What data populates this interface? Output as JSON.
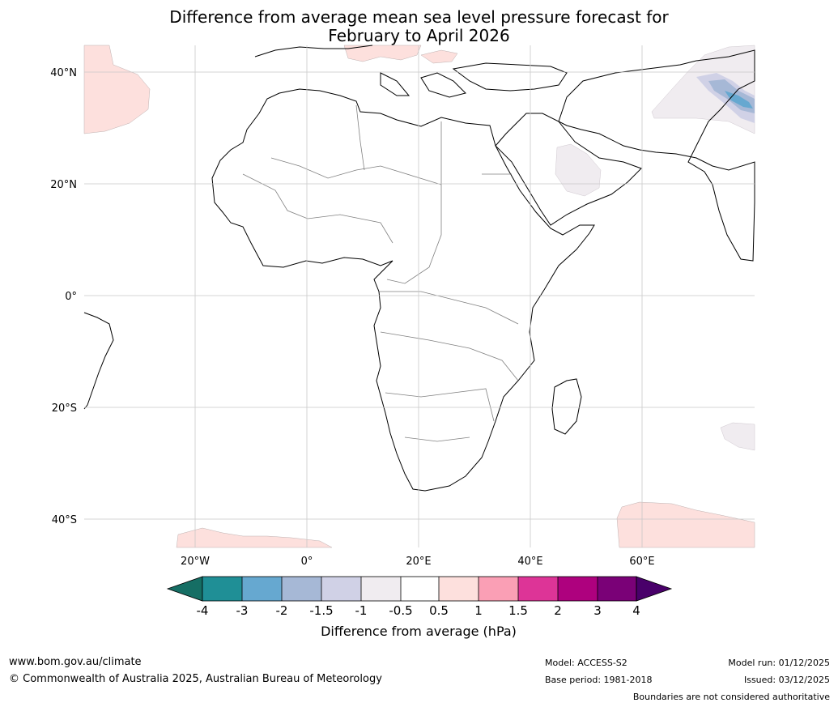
{
  "title": {
    "line1": "Difference from average mean sea level pressure forecast for",
    "line2": "February to April 2026"
  },
  "axes": {
    "lat_labels": [
      "40°N",
      "20°N",
      "0°",
      "20°S",
      "40°S"
    ],
    "lon_labels": [
      "20°W",
      "0°",
      "20°E",
      "40°E",
      "60°E"
    ]
  },
  "colorbar": {
    "title": "Difference from average (hPa)",
    "tick_labels": [
      "-4",
      "-3",
      "-2",
      "-1.5",
      "-1",
      "-0.5",
      "0.5",
      "1",
      "1.5",
      "2",
      "3",
      "4"
    ],
    "colors": [
      "#156e64",
      "#1f8f96",
      "#66a8d0",
      "#a6b8d6",
      "#d0d1e6",
      "#f0ecf0",
      "#ffffff",
      "#fde0dd",
      "#fa9fb5",
      "#dd3497",
      "#ae017e",
      "#7a0177",
      "#49006a"
    ]
  },
  "footer": {
    "website": "www.bom.gov.au/climate",
    "copyright": "© Commonwealth of Australia 2025, Australian Bureau of Meteorology",
    "model": "Model: ACCESS-S2",
    "base_period": "Base period: 1981-2018",
    "model_run": "Model run: 01/12/2025",
    "issued": "Issued: 03/12/2025",
    "disclaimer": "Boundaries are not considered authoritative"
  }
}
